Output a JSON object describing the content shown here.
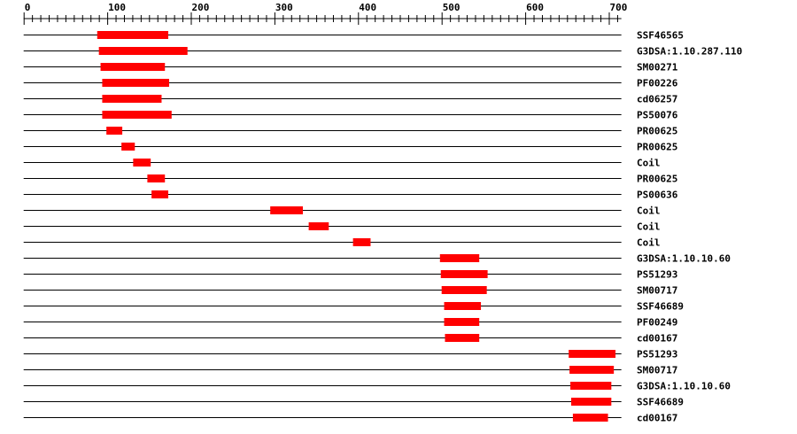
{
  "axis": {
    "min": 0,
    "max": 715,
    "major_ticks": [
      0,
      100,
      200,
      300,
      400,
      500,
      600,
      700
    ],
    "minor_step": 10
  },
  "colors": {
    "domain": "#ff0000",
    "line": "#000000"
  },
  "tracks": [
    {
      "label": "SSF46565",
      "start": 88,
      "end": 173
    },
    {
      "label": "G3DSA:1.10.287.110",
      "start": 90,
      "end": 196
    },
    {
      "label": "SM00271",
      "start": 92,
      "end": 169
    },
    {
      "label": "PF00226",
      "start": 94,
      "end": 174
    },
    {
      "label": "cd06257",
      "start": 94,
      "end": 165
    },
    {
      "label": "PS50076",
      "start": 94,
      "end": 177
    },
    {
      "label": "PR00625",
      "start": 99,
      "end": 118
    },
    {
      "label": "PR00625",
      "start": 117,
      "end": 133
    },
    {
      "label": "Coil",
      "start": 131,
      "end": 152
    },
    {
      "label": "PR00625",
      "start": 148,
      "end": 169
    },
    {
      "label": "PS00636",
      "start": 153,
      "end": 173
    },
    {
      "label": "Coil",
      "start": 295,
      "end": 334
    },
    {
      "label": "Coil",
      "start": 341,
      "end": 365
    },
    {
      "label": "Coil",
      "start": 394,
      "end": 415
    },
    {
      "label": "G3DSA:1.10.10.60",
      "start": 498,
      "end": 545
    },
    {
      "label": "PS51293",
      "start": 499,
      "end": 555
    },
    {
      "label": "SM00717",
      "start": 500,
      "end": 554
    },
    {
      "label": "SSF46689",
      "start": 503,
      "end": 547
    },
    {
      "label": "PF00249",
      "start": 503,
      "end": 545
    },
    {
      "label": "cd00167",
      "start": 504,
      "end": 545
    },
    {
      "label": "PS51293",
      "start": 652,
      "end": 708
    },
    {
      "label": "SM00717",
      "start": 653,
      "end": 706
    },
    {
      "label": "G3DSA:1.10.10.60",
      "start": 654,
      "end": 703
    },
    {
      "label": "SSF46689",
      "start": 655,
      "end": 703
    },
    {
      "label": "cd00167",
      "start": 657,
      "end": 699
    }
  ]
}
